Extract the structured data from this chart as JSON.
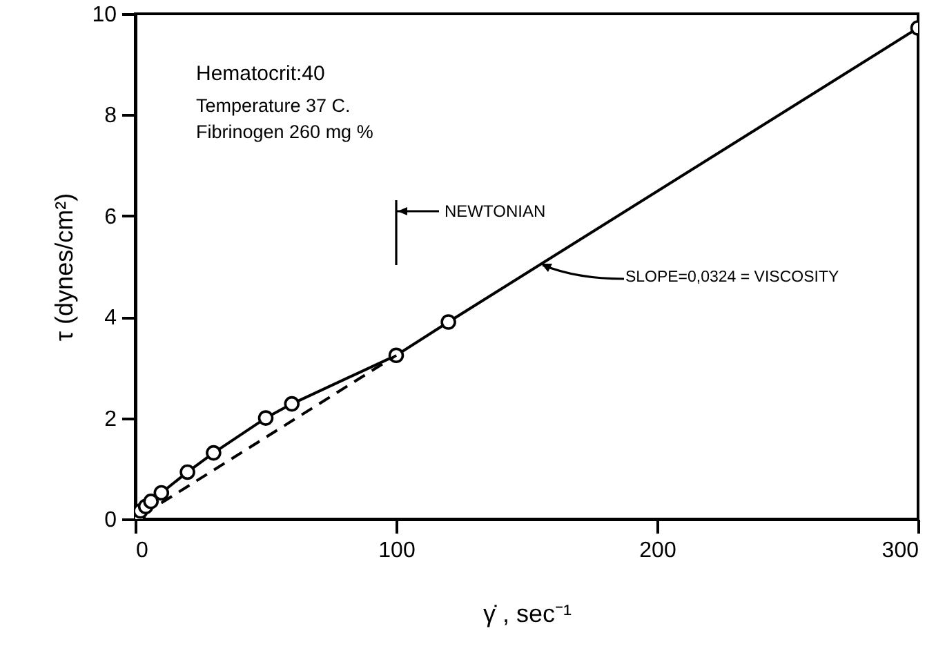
{
  "chart_data": {
    "type": "line",
    "xlabel": "γ̇ , sec⁻¹",
    "ylabel": "τ (dynes/cm²)",
    "xlim": [
      0,
      300
    ],
    "ylim": [
      0,
      10
    ],
    "xticks": [
      0,
      100,
      200,
      300
    ],
    "yticks": [
      0,
      2,
      4,
      6,
      8,
      10
    ],
    "grid": false,
    "series": [
      {
        "color": "#000000",
        "marker": "circle",
        "line_style": "solid",
        "x": [
          1,
          2,
          4,
          6,
          10,
          20,
          30,
          50,
          60,
          100,
          120,
          300
        ],
        "values": [
          0.05,
          0.16,
          0.25,
          0.35,
          0.52,
          0.93,
          1.31,
          2.0,
          2.28,
          3.24,
          3.9,
          9.72
        ]
      },
      {
        "color": "#000000",
        "marker": "none",
        "line_style": "dashed",
        "x": [
          10,
          100
        ],
        "values": [
          0.32,
          3.24
        ]
      }
    ],
    "annotations": [
      "Hematocrit:40",
      "Temperature 37 C.",
      "Fibrinogen   260 mg %",
      "NEWTONIAN",
      {
        "text": "SLOPE=0,0324 = VISCOSITY",
        "x": 155,
        "y": 5.03
      }
    ]
  }
}
